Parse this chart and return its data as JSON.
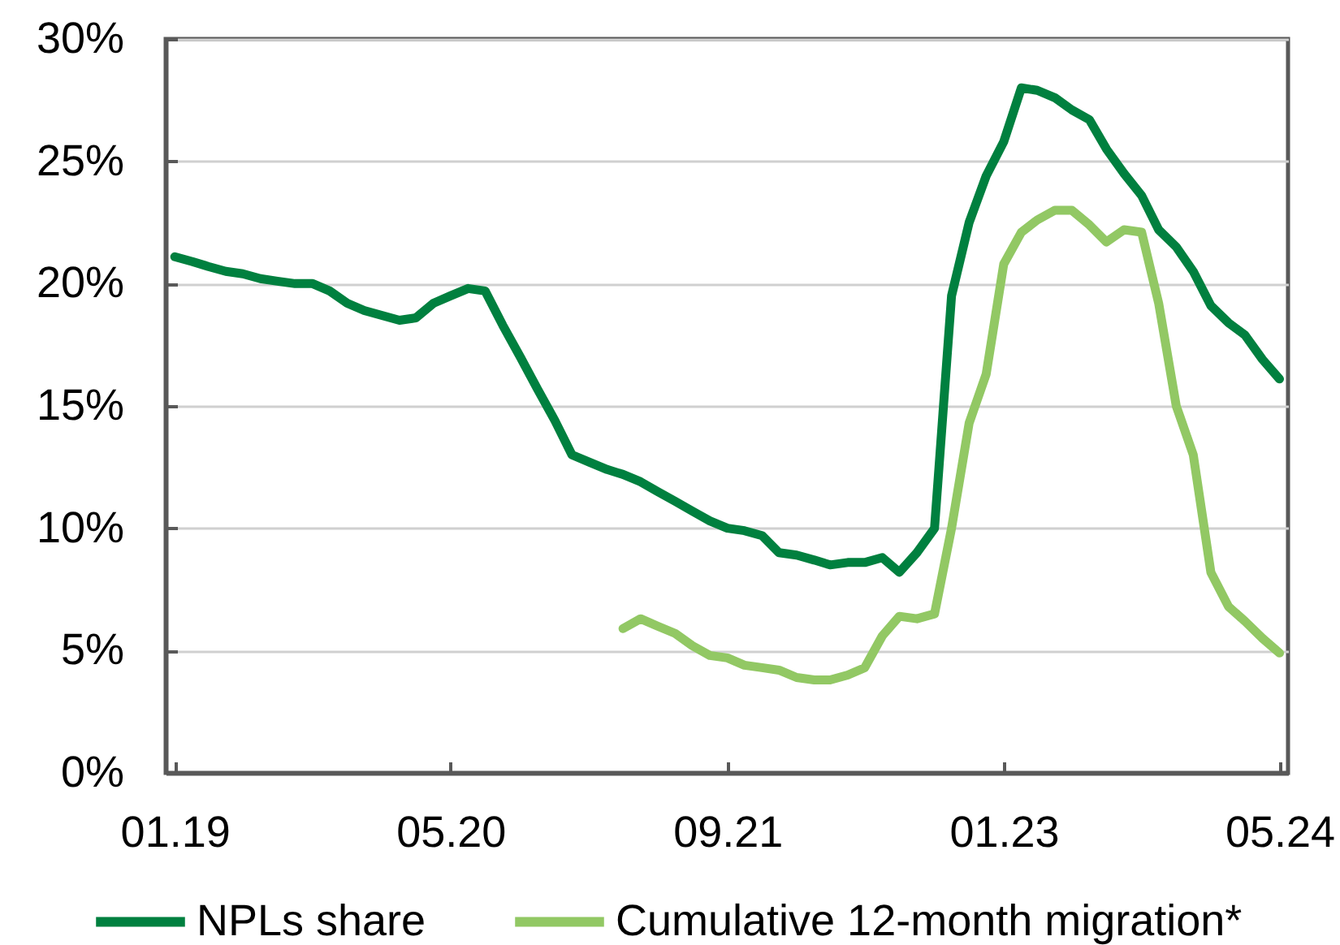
{
  "chart_data": {
    "type": "line",
    "x": [
      "2019-01",
      "2019-02",
      "2019-03",
      "2019-04",
      "2019-05",
      "2019-06",
      "2019-07",
      "2019-08",
      "2019-09",
      "2019-10",
      "2019-11",
      "2019-12",
      "2020-01",
      "2020-02",
      "2020-03",
      "2020-04",
      "2020-05",
      "2020-06",
      "2020-07",
      "2020-08",
      "2020-09",
      "2020-10",
      "2020-11",
      "2020-12",
      "2021-01",
      "2021-02",
      "2021-03",
      "2021-04",
      "2021-05",
      "2021-06",
      "2021-07",
      "2021-08",
      "2021-09",
      "2021-10",
      "2021-11",
      "2021-12",
      "2022-01",
      "2022-02",
      "2022-03",
      "2022-04",
      "2022-05",
      "2022-06",
      "2022-07",
      "2022-08",
      "2022-09",
      "2022-10",
      "2022-11",
      "2022-12",
      "2023-01",
      "2023-02",
      "2023-03",
      "2023-04",
      "2023-05",
      "2023-06",
      "2023-07",
      "2023-08",
      "2023-09",
      "2023-10",
      "2023-11",
      "2023-12",
      "2024-01",
      "2024-02",
      "2024-03",
      "2024-04",
      "2024-05"
    ],
    "series": [
      {
        "name": "NPLs share",
        "color": "#00803f",
        "values": [
          21.1,
          20.9,
          20.7,
          20.5,
          20.4,
          20.2,
          20.1,
          20.0,
          20.0,
          19.7,
          19.2,
          18.9,
          18.7,
          18.5,
          18.6,
          19.2,
          19.5,
          19.8,
          19.7,
          18.3,
          17.0,
          15.7,
          14.4,
          13.0,
          12.7,
          12.4,
          12.2,
          11.9,
          11.5,
          11.1,
          10.7,
          10.3,
          10.0,
          9.9,
          9.7,
          9.0,
          8.9,
          8.7,
          8.5,
          8.6,
          8.6,
          8.8,
          8.2,
          9.0,
          10.0,
          19.5,
          22.5,
          24.4,
          25.8,
          28.0,
          27.9,
          27.6,
          27.1,
          26.7,
          25.5,
          24.5,
          23.6,
          22.2,
          21.5,
          20.5,
          19.1,
          18.4,
          17.9,
          16.9,
          16.1
        ]
      },
      {
        "name": "Cumulative 12-month migration*",
        "color": "#92c864",
        "values": [
          null,
          null,
          null,
          null,
          null,
          null,
          null,
          null,
          null,
          null,
          null,
          null,
          null,
          null,
          null,
          null,
          null,
          null,
          null,
          null,
          null,
          null,
          null,
          null,
          null,
          null,
          5.9,
          6.3,
          6.0,
          5.7,
          5.2,
          4.8,
          4.7,
          4.4,
          4.3,
          4.2,
          3.9,
          3.8,
          3.8,
          4.0,
          4.3,
          5.6,
          6.4,
          6.3,
          6.5,
          10.0,
          14.3,
          16.3,
          20.8,
          22.1,
          22.6,
          23.0,
          23.0,
          22.4,
          21.7,
          22.2,
          22.1,
          19.2,
          15.0,
          13.0,
          8.2,
          6.8,
          6.2,
          5.5,
          4.9
        ]
      }
    ],
    "xlim": [
      "2018-12-16",
      "2024-05-16"
    ],
    "xticks": [
      {
        "value": "2019-01",
        "label": "01.19"
      },
      {
        "value": "2020-05",
        "label": "05.20"
      },
      {
        "value": "2021-09",
        "label": "09.21"
      },
      {
        "value": "2023-01",
        "label": "01.23"
      },
      {
        "value": "2024-05",
        "label": "05.24"
      }
    ],
    "ylim": [
      0,
      30
    ],
    "yticks": [
      {
        "value": 0,
        "label": "0%"
      },
      {
        "value": 5,
        "label": "5%"
      },
      {
        "value": 10,
        "label": "10%"
      },
      {
        "value": 15,
        "label": "15%"
      },
      {
        "value": 20,
        "label": "20%"
      },
      {
        "value": 25,
        "label": "25%"
      },
      {
        "value": 30,
        "label": "30%"
      }
    ],
    "grid": "y",
    "legend": "bottom",
    "line_style": "solid"
  }
}
